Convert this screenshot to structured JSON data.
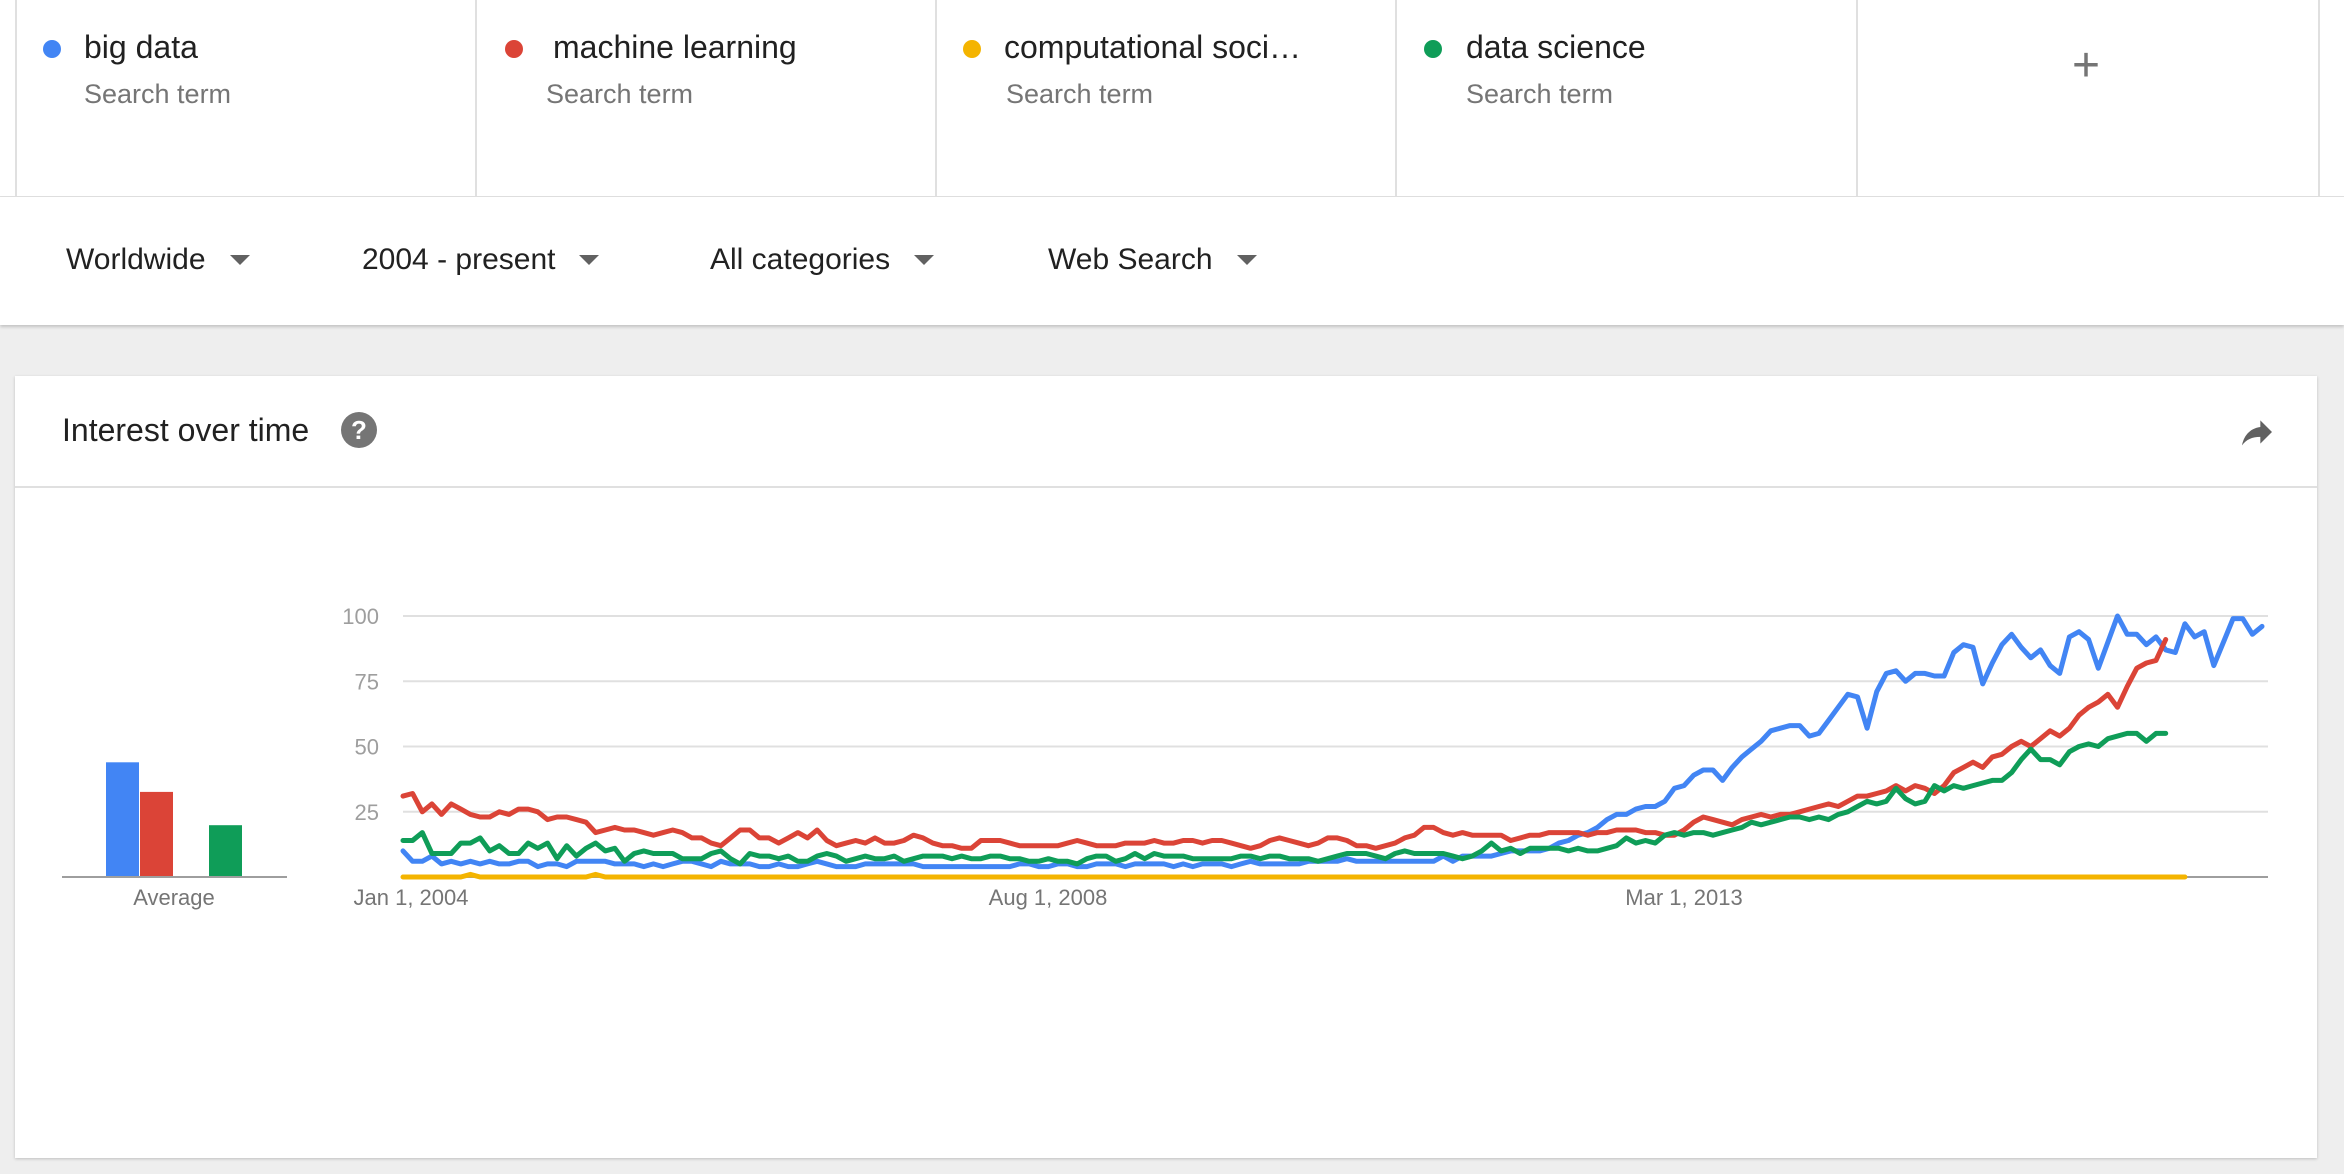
{
  "terms": [
    {
      "name": "big data",
      "sub": "Search term",
      "color": "#4285f4"
    },
    {
      "name": "machine learning",
      "sub": "Search term",
      "color": "#db4437"
    },
    {
      "name": "computational soci…",
      "sub": "Search term",
      "color": "#f4b400"
    },
    {
      "name": "data science",
      "sub": "Search term",
      "color": "#0f9d58"
    }
  ],
  "add_term_label": "+",
  "filters": {
    "region": "Worldwide",
    "time": "2004 - present",
    "category": "All categories",
    "search_type": "Web Search"
  },
  "card": {
    "title": "Interest over time",
    "help": "?"
  },
  "chart_data": [
    {
      "type": "bar",
      "categories": [
        "big data",
        "machine learning",
        "computational soci…",
        "data science"
      ],
      "values": [
        31,
        23,
        0,
        14
      ],
      "colors": [
        "#4285f4",
        "#db4437",
        "#f4b400",
        "#0f9d58"
      ],
      "xlabel": "Average",
      "ylim": [
        0,
        100
      ]
    },
    {
      "type": "line",
      "x_start": "Jan 1, 2004",
      "x_ticks": [
        "Jan 1, 2004",
        "Aug 1, 2008",
        "Mar 1, 2013"
      ],
      "y_ticks": [
        25,
        50,
        75,
        100
      ],
      "ylim": [
        0,
        100
      ],
      "grid": true,
      "series": [
        {
          "name": "big data",
          "color": "#4285f4",
          "values": [
            10,
            6,
            6,
            8,
            5,
            6,
            5,
            6,
            5,
            6,
            5,
            5,
            6,
            6,
            4,
            5,
            5,
            4,
            6,
            6,
            6,
            6,
            5,
            5,
            5,
            4,
            5,
            4,
            5,
            6,
            6,
            5,
            4,
            6,
            5,
            5,
            5,
            4,
            4,
            5,
            4,
            4,
            5,
            6,
            5,
            4,
            4,
            4,
            5,
            5,
            5,
            5,
            5,
            5,
            4,
            4,
            4,
            4,
            4,
            4,
            4,
            4,
            4,
            4,
            5,
            5,
            4,
            4,
            5,
            5,
            4,
            4,
            5,
            5,
            5,
            4,
            5,
            5,
            5,
            5,
            4,
            5,
            4,
            5,
            5,
            5,
            4,
            5,
            6,
            5,
            5,
            5,
            5,
            5,
            6,
            6,
            6,
            6,
            7,
            6,
            6,
            6,
            6,
            6,
            6,
            6,
            6,
            6,
            8,
            6,
            8,
            8,
            8,
            8,
            9,
            10,
            10,
            10,
            10,
            11,
            13,
            14,
            16,
            17,
            19,
            22,
            24,
            24,
            26,
            27,
            27,
            29,
            34,
            35,
            39,
            41,
            41,
            37,
            42,
            46,
            49,
            52,
            56,
            57,
            58,
            58,
            54,
            55,
            60,
            65,
            70,
            69,
            57,
            71,
            78,
            79,
            75,
            78,
            78,
            77,
            77,
            86,
            89,
            88,
            74,
            82,
            89,
            93,
            88,
            84,
            87,
            81,
            78,
            92,
            94,
            91,
            80,
            90,
            100,
            93,
            93,
            89,
            92,
            87,
            86,
            97,
            92,
            94,
            81,
            90,
            99,
            99,
            93,
            96
          ]
        },
        {
          "name": "machine learning",
          "color": "#db4437",
          "values": [
            31,
            32,
            25,
            28,
            24,
            28,
            26,
            24,
            23,
            23,
            25,
            24,
            26,
            26,
            25,
            22,
            23,
            23,
            22,
            21,
            17,
            18,
            19,
            18,
            18,
            17,
            16,
            17,
            18,
            17,
            15,
            15,
            13,
            12,
            15,
            18,
            18,
            15,
            15,
            13,
            15,
            17,
            15,
            18,
            14,
            12,
            13,
            14,
            13,
            15,
            13,
            13,
            14,
            16,
            15,
            13,
            12,
            12,
            11,
            11,
            14,
            14,
            14,
            13,
            12,
            12,
            12,
            12,
            12,
            13,
            14,
            13,
            12,
            12,
            12,
            13,
            13,
            13,
            14,
            13,
            13,
            14,
            14,
            13,
            14,
            14,
            13,
            12,
            11,
            12,
            14,
            15,
            14,
            13,
            12,
            13,
            15,
            15,
            14,
            12,
            12,
            11,
            12,
            13,
            15,
            16,
            19,
            19,
            17,
            16,
            17,
            16,
            16,
            16,
            16,
            14,
            15,
            16,
            16,
            17,
            17,
            17,
            17,
            16,
            17,
            17,
            18,
            18,
            18,
            17,
            17,
            16,
            16,
            18,
            21,
            23,
            22,
            21,
            20,
            22,
            23,
            24,
            23,
            24,
            24,
            25,
            26,
            27,
            28,
            27,
            29,
            31,
            31,
            32,
            33,
            35,
            33,
            35,
            34,
            32,
            35,
            40,
            42,
            44,
            42,
            46,
            47,
            50,
            52,
            50,
            53,
            56,
            54,
            57,
            62,
            65,
            67,
            70,
            65,
            73,
            80,
            82,
            83,
            91
          ]
        },
        {
          "name": "computational soci…",
          "color": "#f4b400",
          "values": [
            0,
            0,
            0,
            0,
            0,
            0,
            0,
            1,
            0,
            0,
            0,
            0,
            0,
            0,
            0,
            0,
            0,
            0,
            0,
            0,
            1,
            0,
            0,
            0,
            0,
            0,
            0,
            0,
            0,
            0,
            0,
            0,
            0,
            0,
            0,
            0,
            0,
            0,
            0,
            0,
            0,
            0,
            0,
            0,
            0,
            0,
            0,
            0,
            0,
            0,
            0,
            0,
            0,
            0,
            0,
            0,
            0,
            0,
            0,
            0,
            0,
            0,
            0,
            0,
            0,
            0,
            0,
            0,
            0,
            0,
            0,
            0,
            0,
            0,
            0,
            0,
            0,
            0,
            0,
            0,
            0,
            0,
            0,
            0,
            0,
            0,
            0,
            0,
            0,
            0,
            0,
            0,
            0,
            0,
            0,
            0,
            0,
            0,
            0,
            0,
            0,
            0,
            0,
            0,
            0,
            0,
            0,
            0,
            0,
            0,
            0,
            0,
            0,
            0,
            0,
            0,
            0,
            0,
            0,
            0,
            0,
            0,
            0,
            0,
            0,
            0,
            0,
            0,
            0,
            0,
            0,
            0,
            0,
            0,
            0,
            0,
            0,
            0,
            0,
            0,
            0,
            0,
            0,
            0,
            0,
            0,
            0,
            0,
            0,
            0,
            0,
            0,
            0,
            0,
            0,
            0,
            0,
            0,
            0,
            0,
            0,
            0,
            0,
            0,
            0,
            0,
            0,
            0,
            0,
            0,
            0,
            0,
            0,
            0,
            0,
            0,
            0,
            0,
            0,
            0,
            0,
            0,
            0,
            0,
            0,
            0
          ]
        },
        {
          "name": "data science",
          "color": "#0f9d58",
          "values": [
            14,
            14,
            17,
            9,
            9,
            9,
            13,
            13,
            15,
            10,
            12,
            9,
            9,
            13,
            11,
            13,
            7,
            12,
            8,
            11,
            13,
            10,
            11,
            6,
            9,
            10,
            9,
            9,
            9,
            7,
            7,
            7,
            9,
            10,
            7,
            5,
            9,
            8,
            8,
            7,
            8,
            6,
            6,
            8,
            9,
            8,
            6,
            7,
            8,
            7,
            7,
            8,
            6,
            7,
            8,
            8,
            8,
            7,
            8,
            7,
            7,
            8,
            8,
            7,
            7,
            6,
            6,
            7,
            6,
            6,
            5,
            7,
            8,
            8,
            6,
            7,
            9,
            7,
            9,
            8,
            8,
            8,
            7,
            7,
            7,
            7,
            7,
            8,
            8,
            7,
            8,
            8,
            7,
            7,
            7,
            6,
            7,
            8,
            9,
            9,
            9,
            8,
            7,
            9,
            10,
            9,
            9,
            9,
            9,
            8,
            7,
            8,
            10,
            13,
            10,
            11,
            9,
            11,
            11,
            11,
            11,
            10,
            11,
            10,
            10,
            11,
            12,
            15,
            13,
            14,
            13,
            16,
            17,
            16,
            17,
            17,
            16,
            17,
            18,
            19,
            21,
            20,
            21,
            22,
            23,
            23,
            22,
            23,
            22,
            24,
            25,
            27,
            29,
            28,
            29,
            34,
            30,
            28,
            29,
            35,
            33,
            35,
            34,
            35,
            36,
            37,
            37,
            40,
            45,
            49,
            45,
            45,
            43,
            48,
            50,
            51,
            50,
            53,
            54,
            55,
            55,
            52,
            55,
            55
          ]
        }
      ]
    }
  ]
}
